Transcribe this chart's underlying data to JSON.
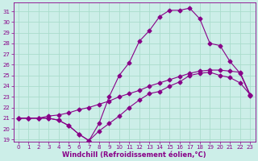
{
  "xlabel": "Windchill (Refroidissement éolien,°C)",
  "bg_color": "#cceee8",
  "grid_color": "#aaddcc",
  "line_color": "#880088",
  "xlim": [
    -0.5,
    23.5
  ],
  "ylim": [
    18.8,
    31.8
  ],
  "yticks": [
    19,
    20,
    21,
    22,
    23,
    24,
    25,
    26,
    27,
    28,
    29,
    30,
    31
  ],
  "xticks": [
    0,
    1,
    2,
    3,
    4,
    5,
    6,
    7,
    8,
    9,
    10,
    11,
    12,
    13,
    14,
    15,
    16,
    17,
    18,
    19,
    20,
    21,
    22,
    23
  ],
  "line1_x": [
    0,
    1,
    2,
    3,
    4,
    5,
    6,
    7,
    8,
    9,
    10,
    11,
    12,
    13,
    14,
    15,
    16,
    17,
    18,
    19,
    20,
    21,
    22,
    23
  ],
  "line1_y": [
    21.0,
    21.0,
    21.0,
    21.0,
    20.8,
    20.3,
    19.5,
    18.9,
    19.8,
    20.5,
    21.2,
    22.0,
    22.7,
    23.3,
    23.5,
    24.0,
    24.4,
    25.0,
    25.2,
    25.3,
    25.0,
    24.8,
    24.3,
    23.2
  ],
  "line2_x": [
    0,
    1,
    2,
    3,
    4,
    5,
    6,
    7,
    8,
    9,
    10,
    11,
    12,
    13,
    14,
    15,
    16,
    17,
    18,
    19,
    20,
    21,
    22,
    23
  ],
  "line2_y": [
    21.0,
    21.0,
    21.0,
    21.2,
    21.3,
    21.5,
    21.8,
    22.0,
    22.3,
    22.6,
    23.0,
    23.3,
    23.6,
    24.0,
    24.3,
    24.6,
    24.9,
    25.2,
    25.4,
    25.5,
    25.5,
    25.4,
    25.3,
    23.2
  ],
  "line3_x": [
    0,
    1,
    2,
    3,
    4,
    5,
    6,
    7,
    8,
    9,
    10,
    11,
    12,
    13,
    14,
    15,
    16,
    17,
    18,
    19,
    20,
    21,
    22,
    23
  ],
  "line3_y": [
    21.0,
    21.0,
    21.0,
    21.0,
    20.8,
    20.3,
    19.5,
    18.9,
    20.5,
    23.0,
    25.0,
    26.2,
    28.2,
    29.2,
    30.5,
    31.1,
    31.1,
    31.3,
    30.3,
    28.0,
    27.8,
    26.3,
    25.2,
    23.1
  ]
}
